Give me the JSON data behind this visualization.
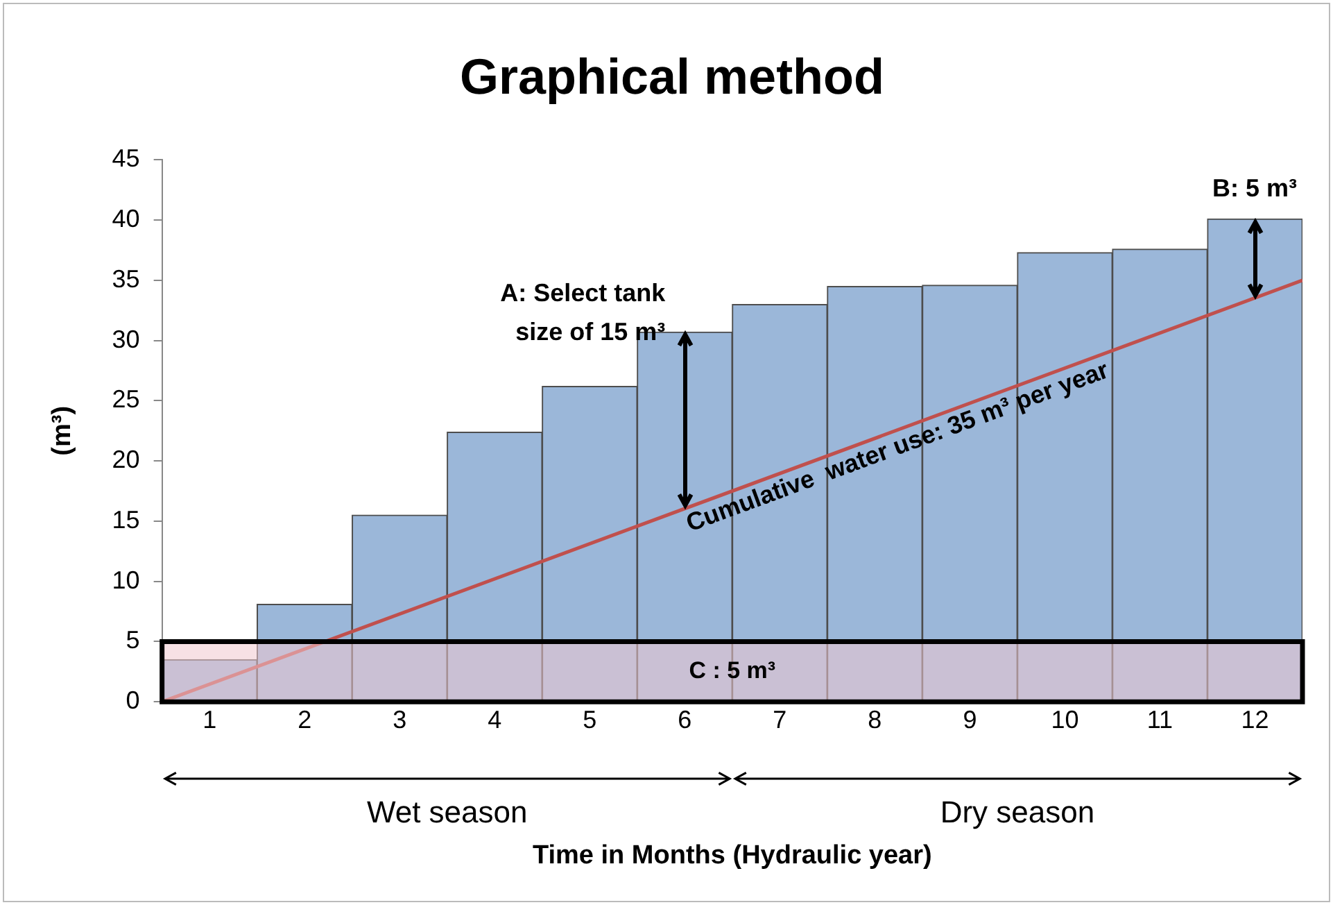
{
  "chart_data": {
    "type": "bar",
    "title": "Graphical method",
    "xlabel": "Time in Months (Hydraulic year)",
    "ylabel": "(m³)",
    "x": [
      1,
      2,
      3,
      4,
      5,
      6,
      7,
      8,
      9,
      10,
      11,
      12
    ],
    "series": [
      {
        "color": "#9bb7d9",
        "values": [
          3.5,
          8.1,
          15.5,
          22.4,
          26.2,
          30.7,
          33,
          34.5,
          34.6,
          37.3,
          37.6,
          40.1
        ]
      },
      {
        "type": "line",
        "name": "Cumulative  water use: 35 m³ per year",
        "color": "#c0504d",
        "x": [
          0.5,
          12.5
        ],
        "values": [
          0,
          35
        ]
      }
    ],
    "xlim": [
      0.5,
      12.5
    ],
    "xticks": [
      1,
      2,
      3,
      4,
      5,
      6,
      7,
      8,
      9,
      10,
      11,
      12
    ],
    "ylim": [
      0,
      45
    ],
    "yticks": [
      0,
      5,
      10,
      15,
      20,
      25,
      30,
      35,
      40,
      45
    ],
    "grid": false,
    "legend": false,
    "marker": "none",
    "bands": [
      {
        "axis": "y",
        "from": 0,
        "to": 5,
        "label": "C : 5 m³",
        "color": "#f0c8d0"
      }
    ],
    "annotations": [
      {
        "text": "A: Select tank size of 15 m³",
        "x": 6,
        "y": 30.7
      },
      {
        "text": "B: 5 m³",
        "x": 12,
        "y": 40.1
      },
      "Wet season",
      "Dry season"
    ]
  }
}
